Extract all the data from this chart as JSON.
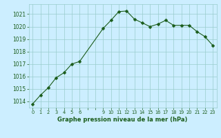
{
  "x": [
    0,
    1,
    2,
    3,
    4,
    5,
    6,
    9,
    10,
    11,
    12,
    13,
    14,
    15,
    16,
    17,
    18,
    19,
    20,
    21,
    22,
    23
  ],
  "y": [
    1013.8,
    1014.5,
    1015.1,
    1015.9,
    1016.3,
    1017.0,
    1017.2,
    1019.85,
    1020.5,
    1021.2,
    1021.25,
    1020.6,
    1020.3,
    1020.0,
    1020.2,
    1020.5,
    1020.1,
    1020.1,
    1020.1,
    1019.6,
    1019.2,
    1018.5
  ],
  "line_color": "#1a5c1a",
  "marker": "D",
  "marker_size": 2.5,
  "bg_color": "#cceeff",
  "grid_color": "#99cccc",
  "xlabel": "Graphe pression niveau de la mer (hPa)",
  "xlabel_color": "#1a5c1a",
  "tick_color": "#1a5c1a",
  "ylim": [
    1013.5,
    1021.8
  ],
  "yticks": [
    1014,
    1015,
    1016,
    1017,
    1018,
    1019,
    1020,
    1021
  ],
  "xlim": [
    -0.5,
    23.5
  ],
  "all_xticks": [
    0,
    1,
    2,
    3,
    4,
    5,
    6,
    7,
    8,
    9,
    10,
    11,
    12,
    13,
    14,
    15,
    16,
    17,
    18,
    19,
    20,
    21,
    22,
    23
  ],
  "xtick_labels": [
    "0",
    "1",
    "2",
    "3",
    "4",
    "5",
    "6",
    "",
    "",
    "9",
    "10",
    "11",
    "12",
    "13",
    "14",
    "15",
    "16",
    "17",
    "18",
    "19",
    "20",
    "21",
    "22",
    "23"
  ]
}
